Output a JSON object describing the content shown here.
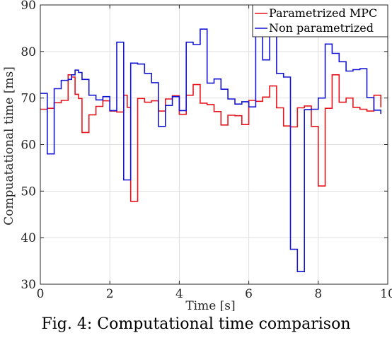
{
  "caption": "Fig. 4: Computational time comparison",
  "colors": {
    "axis": "#262626",
    "grid": "#dfdfdf"
  },
  "chart_data": {
    "type": "line",
    "title": "",
    "xlabel": "Time [s]",
    "ylabel": "Compuatational time [ms]",
    "xlim": [
      0,
      10
    ],
    "ylim": [
      30,
      90
    ],
    "xticks": [
      0,
      2,
      4,
      6,
      8,
      10
    ],
    "yticks": [
      30,
      40,
      50,
      60,
      70,
      80,
      90
    ],
    "grid": true,
    "legend_position": "top-right",
    "step": true,
    "series": [
      {
        "name": "Parametrized MPC",
        "color": "#e8141b",
        "x": [
          0,
          0.2,
          0.4,
          0.6,
          0.8,
          0.9,
          1.0,
          1.1,
          1.2,
          1.4,
          1.6,
          1.8,
          2.0,
          2.2,
          2.4,
          2.5,
          2.6,
          2.8,
          3.0,
          3.2,
          3.4,
          3.6,
          3.8,
          4.0,
          4.2,
          4.4,
          4.6,
          4.8,
          5.0,
          5.2,
          5.4,
          5.6,
          5.8,
          6.0,
          6.2,
          6.4,
          6.6,
          6.8,
          7.0,
          7.2,
          7.4,
          7.6,
          7.8,
          8.0,
          8.2,
          8.4,
          8.6,
          8.8,
          9.0,
          9.2,
          9.4,
          9.6,
          9.8
        ],
        "y": [
          67.6,
          67.8,
          69.0,
          69.5,
          75.0,
          74.5,
          70.8,
          69.9,
          62.6,
          66.4,
          68.2,
          69.4,
          67.2,
          67.0,
          70.6,
          68.0,
          47.8,
          69.9,
          69.1,
          69.4,
          67.2,
          69.8,
          70.5,
          66.5,
          70.6,
          72.9,
          68.9,
          68.6,
          67.1,
          64.2,
          66.3,
          66.2,
          64.3,
          69.5,
          69.3,
          70.2,
          72.6,
          67.9,
          64.0,
          63.8,
          67.9,
          68.3,
          63.9,
          51.1,
          67.8,
          75.0,
          69.1,
          70.0,
          68.0,
          67.6,
          67.2,
          70.6,
          68.0
        ]
      },
      {
        "name": "Non parametrized",
        "color": "#1414d4",
        "x": [
          0,
          0.2,
          0.4,
          0.6,
          0.8,
          0.9,
          1.0,
          1.1,
          1.2,
          1.4,
          1.6,
          1.8,
          2.0,
          2.2,
          2.4,
          2.5,
          2.6,
          2.8,
          3.0,
          3.2,
          3.4,
          3.6,
          3.8,
          4.0,
          4.2,
          4.4,
          4.6,
          4.8,
          5.0,
          5.2,
          5.4,
          5.6,
          5.8,
          6.0,
          6.2,
          6.4,
          6.6,
          6.8,
          7.0,
          7.2,
          7.4,
          7.6,
          7.8,
          8.0,
          8.2,
          8.4,
          8.6,
          8.8,
          9.0,
          9.2,
          9.4,
          9.6,
          9.8
        ],
        "y": [
          71.0,
          58.0,
          72.0,
          73.8,
          74.0,
          75.0,
          76.0,
          75.5,
          74.0,
          70.6,
          69.6,
          70.3,
          67.3,
          82.0,
          52.4,
          52.4,
          77.5,
          77.3,
          75.3,
          73.3,
          63.9,
          68.4,
          70.3,
          67.3,
          82.0,
          81.5,
          84.8,
          73.2,
          74.1,
          71.9,
          69.8,
          68.7,
          69.2,
          68.1,
          85.7,
          78.2,
          84.2,
          75.3,
          74.5,
          37.5,
          32.7,
          67.5,
          67.6,
          70.0,
          81.6,
          79.6,
          77.8,
          75.8,
          76.1,
          76.3,
          70.1,
          67.4,
          66.6
        ]
      }
    ]
  }
}
